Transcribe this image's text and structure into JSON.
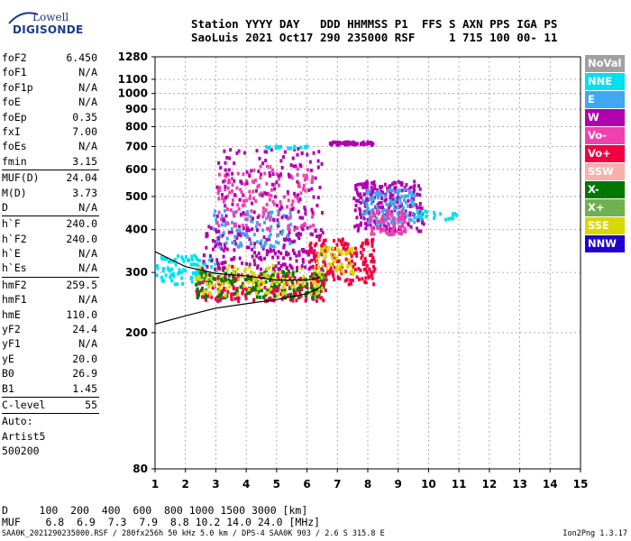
{
  "logo": {
    "line1": "Lowell",
    "line2": "DIGISONDE"
  },
  "header": {
    "line1": "Station YYYY DAY   DDD HHMMSS P1  FFS S AXN PPS IGA PS",
    "line2": "SaoLuis 2021 Oct17 290 235000 RSF     1 715 100 00- 11"
  },
  "params": {
    "group1": [
      {
        "key": "foF2",
        "value": "6.450"
      },
      {
        "key": "foF1",
        "value": "N/A"
      },
      {
        "key": "foF1p",
        "value": "N/A"
      },
      {
        "key": "foE",
        "value": "N/A"
      },
      {
        "key": "foEp",
        "value": "0.35"
      },
      {
        "key": "fxI",
        "value": "7.00"
      },
      {
        "key": "foEs",
        "value": "N/A"
      },
      {
        "key": "fmin",
        "value": "3.15"
      }
    ],
    "group2": [
      {
        "key": "MUF(D)",
        "value": "24.04"
      },
      {
        "key": "M(D)",
        "value": "3.73"
      },
      {
        "key": "D",
        "value": "N/A"
      }
    ],
    "group3": [
      {
        "key": "h`F",
        "value": "240.0"
      },
      {
        "key": "h`F2",
        "value": "240.0"
      },
      {
        "key": "h`E",
        "value": "N/A"
      },
      {
        "key": "h`Es",
        "value": "N/A"
      }
    ],
    "group4": [
      {
        "key": "hmF2",
        "value": "259.5"
      },
      {
        "key": "hmF1",
        "value": "N/A"
      },
      {
        "key": "hmE",
        "value": "110.0"
      },
      {
        "key": "yF2",
        "value": "24.4"
      },
      {
        "key": "yF1",
        "value": "N/A"
      },
      {
        "key": "yE",
        "value": "20.0"
      },
      {
        "key": "B0",
        "value": "26.9"
      },
      {
        "key": "B1",
        "value": "1.45"
      }
    ],
    "clevel": {
      "key": "C-level",
      "value": "55"
    },
    "auto": [
      "Auto:",
      "Artist5",
      "500200"
    ]
  },
  "legend": [
    {
      "label": "NoVal",
      "color": "#a0a0a0"
    },
    {
      "label": "NNE",
      "color": "#00e0f0"
    },
    {
      "label": "E",
      "color": "#40a8f0"
    },
    {
      "label": "W",
      "color": "#b000b0"
    },
    {
      "label": "Vo-",
      "color": "#f040b0"
    },
    {
      "label": "Vo+",
      "color": "#f00040"
    },
    {
      "label": "SSW",
      "color": "#f8b0a8"
    },
    {
      "label": "X-",
      "color": "#007800"
    },
    {
      "label": "X+",
      "color": "#70b050"
    },
    {
      "label": "SSE",
      "color": "#d8d800"
    },
    {
      "label": "NNW",
      "color": "#2000d0"
    }
  ],
  "conversion": {
    "line1": "D     100  200  400  600  800 1000 1500 3000 [km]",
    "line2": "MUF    6.8  6.9  7.3  7.9  8.8 10.2 14.0 24.0 [MHz]"
  },
  "footer": {
    "left": "SAA0K_2021290235000.RSF / 280fx256h 50 kHz 5.0 km / DPS-4 SAA0K 903 / 2.6 S 315.8 E",
    "right": "Ion2Png 1.3.17"
  },
  "chart_data": {
    "type": "scatter",
    "title": "",
    "xlabel": "",
    "ylabel": "",
    "xlim": [
      1,
      15
    ],
    "ylim": [
      80,
      1280
    ],
    "y_scale": "log",
    "x_ticks": [
      1,
      2,
      3,
      4,
      5,
      6,
      7,
      8,
      9,
      10,
      11,
      12,
      13,
      14,
      15
    ],
    "y_ticks": [
      80,
      200,
      300,
      400,
      500,
      600,
      700,
      800,
      900,
      1000,
      1100,
      1280
    ],
    "trace_curve": {
      "x": [
        1.0,
        2.0,
        3.0,
        4.0,
        5.0,
        6.0,
        6.45
      ],
      "y": [
        212,
        224,
        236,
        243,
        250,
        260,
        272
      ]
    },
    "o_trace": {
      "x": [
        1.0,
        2.0,
        3.0,
        4.0,
        5.0,
        6.0,
        6.45
      ],
      "y": [
        345,
        312,
        298,
        293,
        285,
        285,
        290
      ]
    },
    "echo_regions": [
      {
        "x": [
          1.0,
          3.0
        ],
        "y": [
          280,
          340
        ],
        "direction": "NNE",
        "count": 90
      },
      {
        "x": [
          2.3,
          6.6
        ],
        "y": [
          250,
          300
        ],
        "direction": "Vo+",
        "count": 220
      },
      {
        "x": [
          2.3,
          6.6
        ],
        "y": [
          255,
          310
        ],
        "direction": "X-",
        "count": 160
      },
      {
        "x": [
          2.3,
          6.6
        ],
        "y": [
          260,
          320
        ],
        "direction": "SSE",
        "count": 120
      },
      {
        "x": [
          2.5,
          6.5
        ],
        "y": [
          310,
          420
        ],
        "direction": "W",
        "count": 200
      },
      {
        "x": [
          2.8,
          5.5
        ],
        "y": [
          360,
          460
        ],
        "direction": "E",
        "count": 90
      },
      {
        "x": [
          3.0,
          6.2
        ],
        "y": [
          400,
          620
        ],
        "direction": "Vo-",
        "count": 160
      },
      {
        "x": [
          3.0,
          6.5
        ],
        "y": [
          430,
          700
        ],
        "direction": "W",
        "count": 120
      },
      {
        "x": [
          6.0,
          8.2
        ],
        "y": [
          280,
          380
        ],
        "direction": "Vo+",
        "count": 160
      },
      {
        "x": [
          6.3,
          7.5
        ],
        "y": [
          300,
          360
        ],
        "direction": "SSE",
        "count": 60
      },
      {
        "x": [
          7.5,
          9.8
        ],
        "y": [
          400,
          560
        ],
        "direction": "W",
        "count": 240
      },
      {
        "x": [
          7.8,
          9.5
        ],
        "y": [
          420,
          530
        ],
        "direction": "E",
        "count": 120
      },
      {
        "x": [
          8.0,
          9.2
        ],
        "y": [
          390,
          460
        ],
        "direction": "Vo-",
        "count": 70
      },
      {
        "x": [
          6.7,
          8.2
        ],
        "y": [
          715,
          730
        ],
        "direction": "W",
        "count": 60
      },
      {
        "x": [
          4.5,
          6.0
        ],
        "y": [
          700,
          710
        ],
        "direction": "NNE",
        "count": 20
      },
      {
        "x": [
          9.5,
          11.2
        ],
        "y": [
          430,
          460
        ],
        "direction": "NNE",
        "count": 25
      }
    ]
  }
}
